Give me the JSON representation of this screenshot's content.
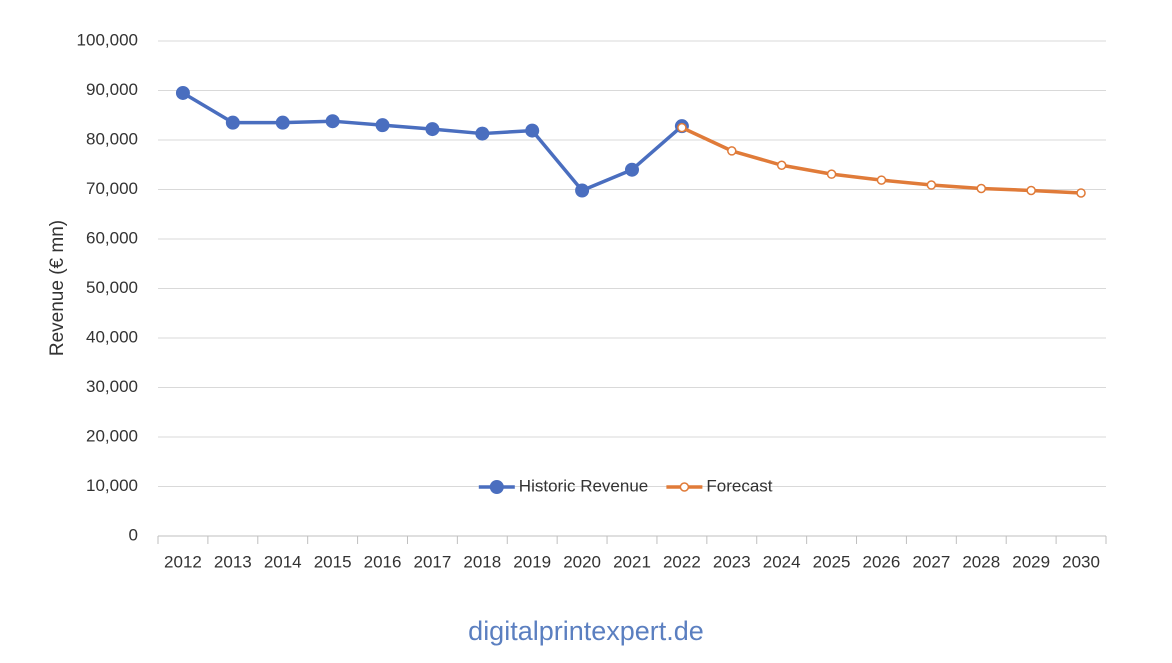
{
  "chart_data": {
    "type": "line",
    "y_label": "Revenue (€ mn)",
    "categories": [
      "2012",
      "2013",
      "2014",
      "2015",
      "2016",
      "2017",
      "2018",
      "2019",
      "2020",
      "2021",
      "2022",
      "2023",
      "2024",
      "2025",
      "2026",
      "2027",
      "2028",
      "2029",
      "2030"
    ],
    "series": [
      {
        "name": "Historic Revenue",
        "color": "#4a6ebf",
        "marker": "filled",
        "values": [
          89500,
          83500,
          83500,
          83800,
          83000,
          82200,
          81300,
          81900,
          69800,
          74000,
          82800,
          null,
          null,
          null,
          null,
          null,
          null,
          null,
          null
        ]
      },
      {
        "name": "Forecast",
        "color": "#e07b39",
        "marker": "open",
        "values": [
          null,
          null,
          null,
          null,
          null,
          null,
          null,
          null,
          null,
          null,
          82500,
          77800,
          74900,
          73100,
          71900,
          70900,
          70200,
          69800,
          69300
        ]
      }
    ],
    "ylim": [
      0,
      100000
    ],
    "yticks": [
      0,
      {
        "value": 10000,
        "label": "10,000"
      },
      {
        "value": 20000,
        "label": "20,000"
      },
      {
        "value": 30000,
        "label": "30,000"
      },
      {
        "value": 40000,
        "label": "40,000"
      },
      {
        "value": 50000,
        "label": "50,000"
      },
      {
        "value": 60000,
        "label": "60,000"
      },
      {
        "value": 70000,
        "label": "70,000"
      },
      {
        "value": 80000,
        "label": "80,000"
      },
      {
        "value": 90000,
        "label": "90,000"
      },
      {
        "value": 100000,
        "label": "100,000"
      }
    ],
    "grid": true,
    "legend": "bottom",
    "watermark": "digitalprintexpert.de"
  }
}
